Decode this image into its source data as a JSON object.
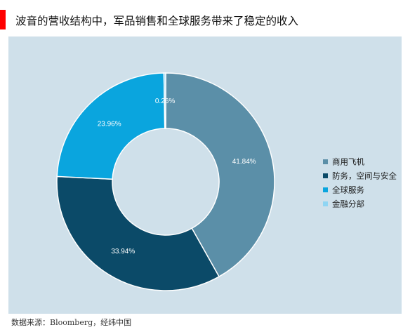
{
  "chart_data": {
    "type": "pie",
    "title": "波音的营收结构中，军品销售和全球服务带来了稳定的收入",
    "categories": [
      "商用飞机",
      "防务，空间与安全",
      "全球服务",
      "金融分部"
    ],
    "values": [
      41.84,
      33.94,
      23.96,
      0.26
    ],
    "value_labels": [
      "41.84%",
      "33.94%",
      "23.96%",
      "0.26%"
    ],
    "colors": [
      "#5b8fa8",
      "#0b4a68",
      "#0aa5de",
      "#8fd5f3"
    ],
    "donut": true,
    "legend_position": "right"
  },
  "source": "数据来源：Bloomberg，经纬中国",
  "colors": {
    "accent": "#ff0000",
    "plot_background": "#cfe0ea"
  }
}
